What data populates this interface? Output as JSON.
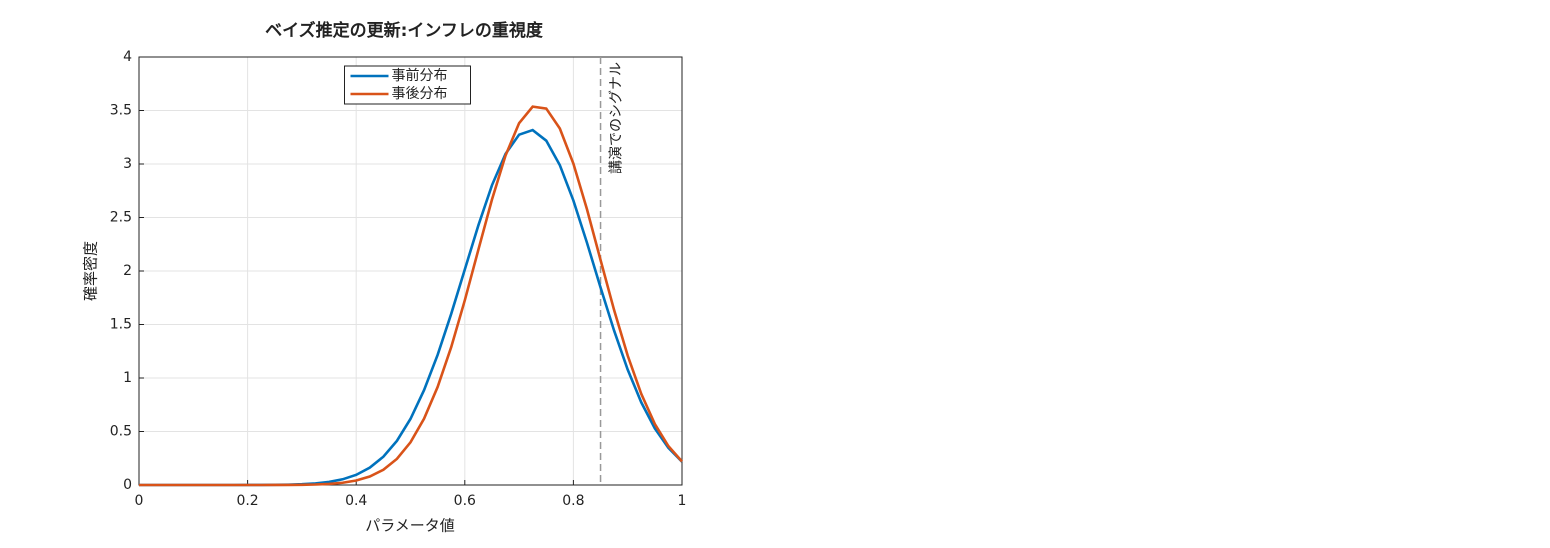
{
  "chart_data": {
    "type": "line",
    "title": "ベイズ推定の更新:インフレの重視度",
    "x_label": "パラメータ値",
    "y_label": "確率密度",
    "x": [
      0,
      0.025,
      0.05,
      0.075,
      0.1,
      0.125,
      0.15,
      0.175,
      0.2,
      0.225,
      0.25,
      0.275,
      0.3,
      0.325,
      0.35,
      0.375,
      0.4,
      0.425,
      0.45,
      0.475,
      0.5,
      0.525,
      0.55,
      0.575,
      0.6,
      0.625,
      0.65,
      0.675,
      0.7,
      0.725,
      0.75,
      0.775,
      0.8,
      0.825,
      0.85,
      0.875,
      0.9,
      0.925,
      0.95,
      0.975,
      1
    ],
    "series": [
      {
        "name": "事前分布",
        "color": "#0072BD",
        "values": [
          0,
          0,
          0,
          0,
          1e-05,
          2e-05,
          4e-05,
          0.0001,
          0.0003,
          0.0007,
          0.0015,
          0.0034,
          0.0073,
          0.0147,
          0.0286,
          0.0533,
          0.0948,
          0.162,
          0.264,
          0.413,
          0.618,
          0.887,
          1.217,
          1.6,
          2.014,
          2.427,
          2.801,
          3.095,
          3.274,
          3.317,
          3.218,
          2.989,
          2.658,
          2.264,
          1.846,
          1.442,
          1.078,
          0.772,
          0.529,
          0.347,
          0.218
        ]
      },
      {
        "name": "事後分布",
        "color": "#D95319",
        "values": [
          0,
          0,
          0,
          0,
          0,
          0,
          0,
          0,
          4e-05,
          0.0001,
          0.0003,
          0.0008,
          0.002,
          0.0046,
          0.01,
          0.021,
          0.0418,
          0.0792,
          0.1426,
          0.2446,
          0.399,
          0.62,
          0.917,
          1.289,
          1.726,
          2.199,
          2.667,
          3.079,
          3.382,
          3.536,
          3.518,
          3.332,
          3.003,
          2.577,
          2.103,
          1.634,
          1.209,
          0.851,
          0.57,
          0.363,
          0.22
        ]
      }
    ],
    "xlim": [
      0,
      1
    ],
    "xticks": [
      0,
      0.2,
      0.4,
      0.6,
      0.8,
      1
    ],
    "ylim": [
      0,
      4
    ],
    "yticks": [
      0,
      0.5,
      1,
      1.5,
      2,
      2.5,
      3,
      3.5,
      4
    ],
    "grid": true,
    "legend": "top-center",
    "annotations": [
      {
        "text": "講演でのシグナル",
        "x": 0.85,
        "color": "#999999"
      }
    ]
  }
}
